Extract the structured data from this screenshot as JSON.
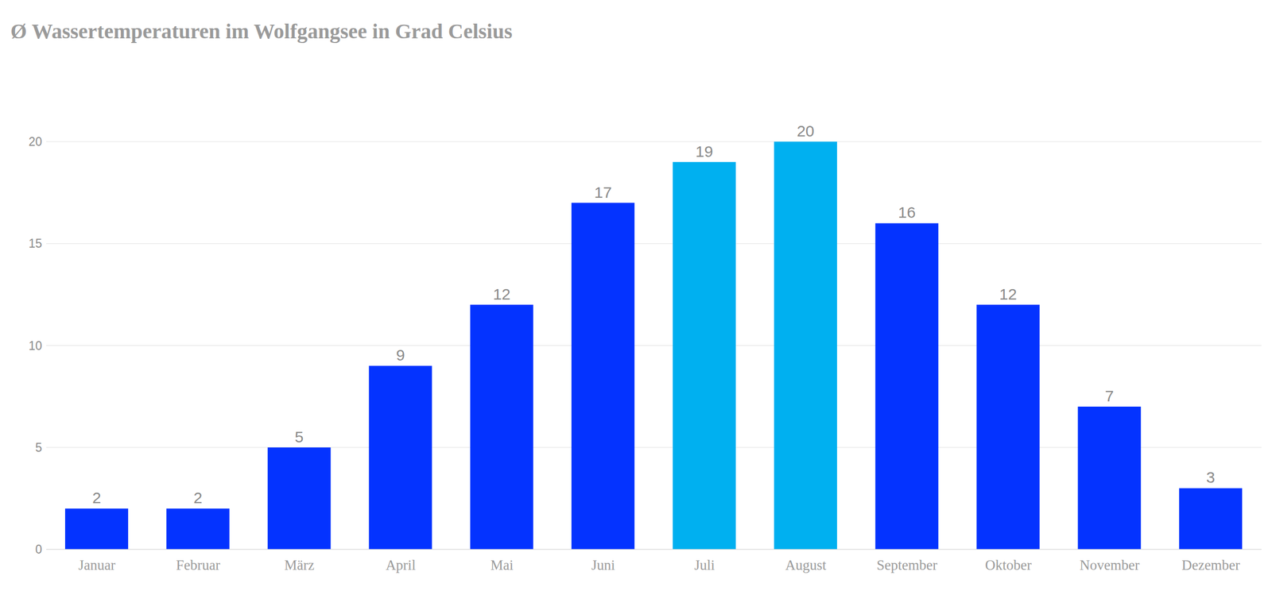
{
  "chart_data": {
    "type": "bar",
    "title": "Ø Wassertemperaturen im Wolfgangsee in Grad Celsius",
    "categories": [
      "Januar",
      "Februar",
      "März",
      "April",
      "Mai",
      "Juni",
      "Juli",
      "August",
      "September",
      "Oktober",
      "November",
      "Dezember"
    ],
    "values": [
      2,
      2,
      5,
      9,
      12,
      17,
      19,
      20,
      16,
      12,
      7,
      3
    ],
    "colors": [
      "#0433ff",
      "#0433ff",
      "#0433ff",
      "#0433ff",
      "#0433ff",
      "#0433ff",
      "#00b0f0",
      "#00b0f0",
      "#0433ff",
      "#0433ff",
      "#0433ff",
      "#0433ff"
    ],
    "ylim": [
      0,
      20
    ],
    "yticks": [
      0,
      5,
      10,
      15,
      20
    ],
    "grid": true,
    "data_labels": true
  }
}
